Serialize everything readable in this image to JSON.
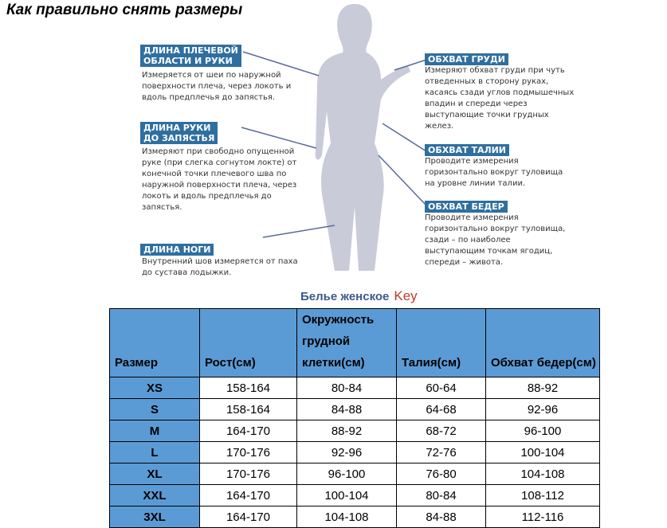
{
  "title": "Как правильно снять размеры",
  "measures": [
    {
      "label_lines": [
        "ДЛИНА ПЛЕЧЕВОЙ",
        "ОБЛАСТИ И РУКИ"
      ],
      "text": "Измеряется от шеи по наружной\nповерхности плеча, через локоть и\nвдоль предплечья до запястья."
    },
    {
      "label_lines": [
        "ДЛИНА РУКИ",
        "ДО ЗАПЯСТЬЯ"
      ],
      "text": "Измеряют при свободно опущенной\nруке (при слегка согнутом локте) от\nконечной точки плечевого шва по\nнаружной поверхности плеча, через\nлокоть и вдоль предплечья до\nзапястья."
    },
    {
      "label_lines": [
        "ДЛИНА НОГИ"
      ],
      "text": "Внутренний шов измеряется от паха\nдо сустава лодыжки."
    },
    {
      "label_lines": [
        "ОБХВАТ ГРУДИ"
      ],
      "text": "Измеряют обхват груди при чуть\nотведенных в сторону руках,\nкасаясь сзади углов подмышечных\nвпадин и спереди через\nвыступающие точки грудных\nжелез."
    },
    {
      "label_lines": [
        "ОБХВАТ ТАЛИИ"
      ],
      "text": "Проводите измерения\nгоризонтально вокруг туловища\nна уровне линии талии."
    },
    {
      "label_lines": [
        "ОБХВАТ БЕДЕР"
      ],
      "text": "Проводите измерения\nгоризонтально вокруг туловища,\nсзади – по наиболее\nвыступающим точкам ягодиц,\nспереди – живота."
    }
  ],
  "table": {
    "caption": "Белье женское",
    "caption_key": "Key",
    "headers": [
      "Размер",
      "Рост(см)",
      "Окружность грудной клетки(см)",
      "Талия(см)",
      "Обхват бедер(см)"
    ],
    "rows": [
      [
        "XS",
        "158-164",
        "80-84",
        "60-64",
        "88-92"
      ],
      [
        "S",
        "158-164",
        "84-88",
        "64-68",
        "92-96"
      ],
      [
        "M",
        "164-170",
        "88-92",
        "68-72",
        "96-100"
      ],
      [
        "L",
        "170-176",
        "92-96",
        "72-76",
        "100-104"
      ],
      [
        "XL",
        "170-176",
        "96-100",
        "76-80",
        "104-108"
      ],
      [
        "XXL",
        "164-170",
        "100-104",
        "80-84",
        "108-112"
      ],
      [
        "3XL",
        "164-170",
        "104-108",
        "84-88",
        "112-116"
      ]
    ]
  },
  "colors": {
    "label_bg": "#2f6fa0",
    "header_bg": "#5b9bd5",
    "caption": "#3c5a8c",
    "key": "#c0392b"
  }
}
